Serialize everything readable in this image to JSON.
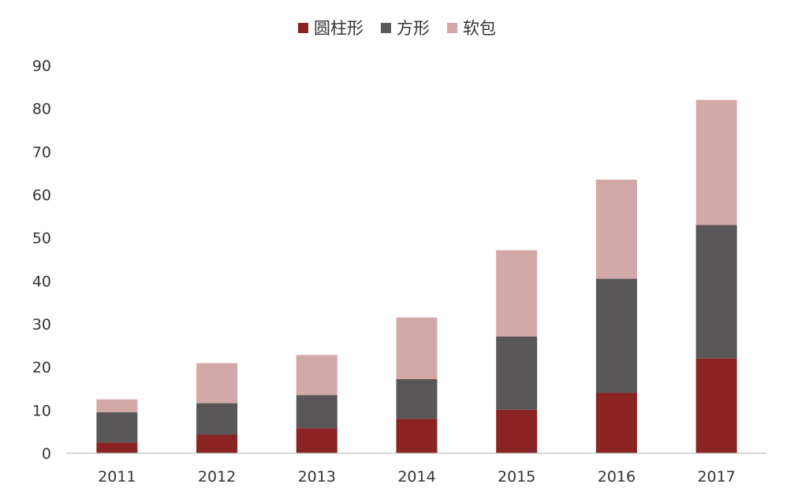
{
  "chart_data": {
    "type": "bar",
    "stacked": true,
    "categories": [
      "2011",
      "2012",
      "2013",
      "2014",
      "2015",
      "2016",
      "2017"
    ],
    "series": [
      {
        "name": "圆柱形",
        "color": "#8b2323",
        "values": [
          2.5,
          4.3,
          5.8,
          8.0,
          10.1,
          14.0,
          22.0
        ]
      },
      {
        "name": "方形",
        "color": "#595757",
        "values": [
          7.0,
          7.3,
          7.7,
          9.2,
          17.0,
          26.5,
          31.0
        ]
      },
      {
        "name": "软包",
        "color": "#d3a8a8",
        "values": [
          3.0,
          9.3,
          9.3,
          14.3,
          20.0,
          23.0,
          29.0
        ]
      }
    ],
    "ylim": [
      0,
      90
    ],
    "yticks": [
      0,
      10,
      20,
      30,
      40,
      50,
      60,
      70,
      80,
      90
    ],
    "grid": false,
    "legend_position": "top-center",
    "title": "",
    "xlabel": "",
    "ylabel": ""
  }
}
